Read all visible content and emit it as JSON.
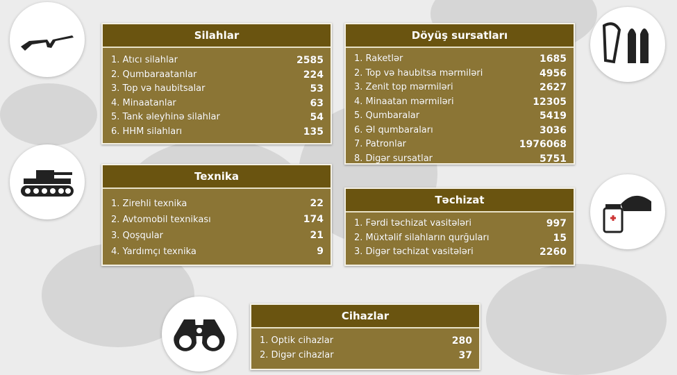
{
  "panels": {
    "silahlar": {
      "title": "Silahlar",
      "icon": "rifle-icon",
      "items": [
        {
          "label": "1. Atıcı silahlar",
          "value": "2585"
        },
        {
          "label": "2. Qumbaraatanlar",
          "value": "224"
        },
        {
          "label": "3. Top və haubitsalar",
          "value": "53"
        },
        {
          "label": "4. Minaatanlar",
          "value": "63"
        },
        {
          "label": "5. Tank əleyhinə silahlar",
          "value": "54"
        },
        {
          "label": "6. HHM silahları",
          "value": "135"
        }
      ]
    },
    "sursatlar": {
      "title": "Döyüş sursatları",
      "icon": "ammunition-icon",
      "items": [
        {
          "label": "1. Raketlər",
          "value": "1685"
        },
        {
          "label": "2. Top və haubitsa mərmiləri",
          "value": "4956"
        },
        {
          "label": "3. Zenit top mərmiləri",
          "value": "2627"
        },
        {
          "label": "4. Minaatan mərmiləri",
          "value": "12305"
        },
        {
          "label": "5. Qumbaralar",
          "value": "5419"
        },
        {
          "label": "6. Əl qumbaraları",
          "value": "3036"
        },
        {
          "label": "7. Patronlar",
          "value": "1976068"
        },
        {
          "label": "8. Digər sursatlar",
          "value": "5751"
        }
      ]
    },
    "texnika": {
      "title": "Texnika",
      "icon": "tank-icon",
      "items": [
        {
          "label": "1. Zirehli texnika",
          "value": "22"
        },
        {
          "label": "2. Avtomobil texnikası",
          "value": "174"
        },
        {
          "label": "3. Qoşqular",
          "value": "21"
        },
        {
          "label": "4. Yardımçı texnika",
          "value": "9"
        }
      ]
    },
    "techizat": {
      "title": "Təchizat",
      "icon": "medkit-helmet-icon",
      "items": [
        {
          "label": "1. Fərdi təchizat  vasitələri",
          "value": "997"
        },
        {
          "label": "2. Müxtəlif silahların qurğuları",
          "value": "15"
        },
        {
          "label": "3. Digər təchizat vasitələri",
          "value": "2260"
        }
      ]
    },
    "cihazlar": {
      "title": "Cihazlar",
      "icon": "binoculars-icon",
      "items": [
        {
          "label": "1. Optik cihazlar",
          "value": "280"
        },
        {
          "label": "2. Digər cihazlar",
          "value": "37"
        }
      ]
    }
  },
  "colors": {
    "header": "#6a5410",
    "body": "#8b7535",
    "background": "#ececec"
  }
}
